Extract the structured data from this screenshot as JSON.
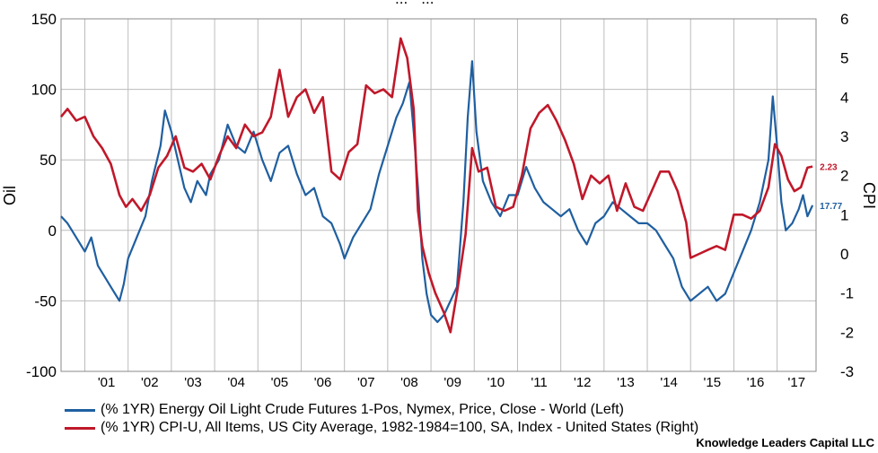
{
  "chart_data": {
    "type": "line",
    "title": "... - ...",
    "xlabel": "",
    "left_axis": {
      "label": "Oil",
      "range": [
        -100,
        150
      ],
      "ticks": [
        -100,
        -50,
        0,
        50,
        100,
        150
      ]
    },
    "right_axis": {
      "label": "CPI",
      "range": [
        -3,
        6
      ],
      "ticks": [
        -3,
        -2,
        -1,
        0,
        1,
        2,
        3,
        4,
        5,
        6
      ]
    },
    "x_ticks": [
      "'01",
      "'02",
      "'03",
      "'04",
      "'05",
      "'06",
      "'07",
      "'08",
      "'09",
      "'10",
      "'11",
      "'12",
      "'13",
      "'14",
      "'15",
      "'16",
      "'17"
    ],
    "x_range": [
      2000.45,
      2017.9
    ],
    "grid": true,
    "series": [
      {
        "name": "(% 1YR) Energy Oil Light Crude Futures 1-Pos, Nymex, Price, Close - World  (Left)",
        "axis": "left",
        "color": "#1f5fa0",
        "end_label": "17.77",
        "points": [
          [
            2000.45,
            10
          ],
          [
            2000.6,
            5
          ],
          [
            2000.8,
            -5
          ],
          [
            2001.0,
            -15
          ],
          [
            2001.15,
            -5
          ],
          [
            2001.3,
            -25
          ],
          [
            2001.5,
            -35
          ],
          [
            2001.7,
            -45
          ],
          [
            2001.8,
            -50
          ],
          [
            2001.9,
            -38
          ],
          [
            2002.0,
            -20
          ],
          [
            2002.2,
            -5
          ],
          [
            2002.4,
            10
          ],
          [
            2002.55,
            35
          ],
          [
            2002.75,
            60
          ],
          [
            2002.85,
            85
          ],
          [
            2003.0,
            70
          ],
          [
            2003.15,
            50
          ],
          [
            2003.3,
            30
          ],
          [
            2003.45,
            20
          ],
          [
            2003.6,
            35
          ],
          [
            2003.8,
            25
          ],
          [
            2003.9,
            40
          ],
          [
            2004.1,
            50
          ],
          [
            2004.3,
            75
          ],
          [
            2004.5,
            60
          ],
          [
            2004.7,
            55
          ],
          [
            2004.9,
            70
          ],
          [
            2005.1,
            50
          ],
          [
            2005.3,
            35
          ],
          [
            2005.5,
            55
          ],
          [
            2005.7,
            60
          ],
          [
            2005.9,
            40
          ],
          [
            2006.1,
            25
          ],
          [
            2006.3,
            30
          ],
          [
            2006.5,
            10
          ],
          [
            2006.7,
            5
          ],
          [
            2006.9,
            -10
          ],
          [
            2007.0,
            -20
          ],
          [
            2007.2,
            -5
          ],
          [
            2007.4,
            5
          ],
          [
            2007.6,
            15
          ],
          [
            2007.8,
            40
          ],
          [
            2008.0,
            60
          ],
          [
            2008.2,
            80
          ],
          [
            2008.35,
            90
          ],
          [
            2008.5,
            105
          ],
          [
            2008.6,
            70
          ],
          [
            2008.7,
            30
          ],
          [
            2008.8,
            -20
          ],
          [
            2008.9,
            -45
          ],
          [
            2009.0,
            -60
          ],
          [
            2009.15,
            -65
          ],
          [
            2009.3,
            -60
          ],
          [
            2009.45,
            -50
          ],
          [
            2009.6,
            -40
          ],
          [
            2009.75,
            20
          ],
          [
            2009.85,
            80
          ],
          [
            2009.95,
            120
          ],
          [
            2010.05,
            70
          ],
          [
            2010.2,
            35
          ],
          [
            2010.4,
            20
          ],
          [
            2010.6,
            10
          ],
          [
            2010.8,
            25
          ],
          [
            2011.0,
            25
          ],
          [
            2011.2,
            45
          ],
          [
            2011.4,
            30
          ],
          [
            2011.6,
            20
          ],
          [
            2011.8,
            15
          ],
          [
            2012.0,
            10
          ],
          [
            2012.2,
            15
          ],
          [
            2012.4,
            0
          ],
          [
            2012.6,
            -10
          ],
          [
            2012.8,
            5
          ],
          [
            2013.0,
            10
          ],
          [
            2013.2,
            20
          ],
          [
            2013.4,
            15
          ],
          [
            2013.6,
            10
          ],
          [
            2013.8,
            5
          ],
          [
            2014.0,
            5
          ],
          [
            2014.2,
            0
          ],
          [
            2014.4,
            -10
          ],
          [
            2014.6,
            -20
          ],
          [
            2014.8,
            -40
          ],
          [
            2015.0,
            -50
          ],
          [
            2015.2,
            -45
          ],
          [
            2015.4,
            -40
          ],
          [
            2015.6,
            -50
          ],
          [
            2015.8,
            -45
          ],
          [
            2016.0,
            -30
          ],
          [
            2016.2,
            -15
          ],
          [
            2016.4,
            0
          ],
          [
            2016.6,
            20
          ],
          [
            2016.8,
            50
          ],
          [
            2016.9,
            95
          ],
          [
            2017.0,
            60
          ],
          [
            2017.1,
            20
          ],
          [
            2017.2,
            0
          ],
          [
            2017.35,
            5
          ],
          [
            2017.5,
            15
          ],
          [
            2017.6,
            25
          ],
          [
            2017.7,
            10
          ],
          [
            2017.82,
            17.77
          ]
        ]
      },
      {
        "name": "(% 1YR) CPI-U, All Items, US City Average, 1982-1984=100, SA, Index - United States  (Right)",
        "axis": "right",
        "color": "#c0182a",
        "end_label": "2.23",
        "points": [
          [
            2000.45,
            3.5
          ],
          [
            2000.6,
            3.7
          ],
          [
            2000.8,
            3.4
          ],
          [
            2001.0,
            3.5
          ],
          [
            2001.2,
            3.0
          ],
          [
            2001.4,
            2.7
          ],
          [
            2001.6,
            2.3
          ],
          [
            2001.8,
            1.5
          ],
          [
            2001.95,
            1.2
          ],
          [
            2002.1,
            1.4
          ],
          [
            2002.3,
            1.1
          ],
          [
            2002.5,
            1.5
          ],
          [
            2002.7,
            2.2
          ],
          [
            2002.9,
            2.5
          ],
          [
            2003.1,
            3.0
          ],
          [
            2003.3,
            2.2
          ],
          [
            2003.5,
            2.1
          ],
          [
            2003.7,
            2.3
          ],
          [
            2003.9,
            1.9
          ],
          [
            2004.1,
            2.5
          ],
          [
            2004.3,
            3.0
          ],
          [
            2004.5,
            2.7
          ],
          [
            2004.7,
            3.3
          ],
          [
            2004.9,
            3.0
          ],
          [
            2005.1,
            3.1
          ],
          [
            2005.3,
            3.5
          ],
          [
            2005.5,
            4.7
          ],
          [
            2005.7,
            3.5
          ],
          [
            2005.9,
            4.0
          ],
          [
            2006.1,
            4.2
          ],
          [
            2006.3,
            3.6
          ],
          [
            2006.5,
            4.0
          ],
          [
            2006.7,
            2.1
          ],
          [
            2006.9,
            1.9
          ],
          [
            2007.1,
            2.6
          ],
          [
            2007.3,
            2.8
          ],
          [
            2007.5,
            4.3
          ],
          [
            2007.7,
            4.1
          ],
          [
            2007.9,
            4.2
          ],
          [
            2008.1,
            4.0
          ],
          [
            2008.3,
            5.5
          ],
          [
            2008.45,
            5.0
          ],
          [
            2008.6,
            3.7
          ],
          [
            2008.7,
            1.1
          ],
          [
            2008.8,
            0.2
          ],
          [
            2008.95,
            -0.5
          ],
          [
            2009.1,
            -1.0
          ],
          [
            2009.3,
            -1.5
          ],
          [
            2009.45,
            -2.0
          ],
          [
            2009.6,
            -1.0
          ],
          [
            2009.8,
            0.5
          ],
          [
            2009.95,
            2.7
          ],
          [
            2010.1,
            2.1
          ],
          [
            2010.3,
            2.2
          ],
          [
            2010.5,
            1.2
          ],
          [
            2010.7,
            1.1
          ],
          [
            2010.9,
            1.2
          ],
          [
            2011.1,
            2.0
          ],
          [
            2011.3,
            3.2
          ],
          [
            2011.5,
            3.6
          ],
          [
            2011.7,
            3.8
          ],
          [
            2011.9,
            3.4
          ],
          [
            2012.1,
            2.9
          ],
          [
            2012.3,
            2.3
          ],
          [
            2012.5,
            1.4
          ],
          [
            2012.7,
            2.0
          ],
          [
            2012.9,
            1.8
          ],
          [
            2013.1,
            2.0
          ],
          [
            2013.3,
            1.1
          ],
          [
            2013.5,
            1.8
          ],
          [
            2013.7,
            1.2
          ],
          [
            2013.9,
            1.1
          ],
          [
            2014.1,
            1.6
          ],
          [
            2014.3,
            2.1
          ],
          [
            2014.5,
            2.1
          ],
          [
            2014.7,
            1.6
          ],
          [
            2014.9,
            0.8
          ],
          [
            2015.0,
            -0.1
          ],
          [
            2015.2,
            0.0
          ],
          [
            2015.4,
            0.1
          ],
          [
            2015.6,
            0.2
          ],
          [
            2015.8,
            0.1
          ],
          [
            2016.0,
            1.0
          ],
          [
            2016.2,
            1.0
          ],
          [
            2016.4,
            0.9
          ],
          [
            2016.6,
            1.1
          ],
          [
            2016.8,
            1.7
          ],
          [
            2016.95,
            2.8
          ],
          [
            2017.1,
            2.5
          ],
          [
            2017.25,
            1.9
          ],
          [
            2017.4,
            1.6
          ],
          [
            2017.55,
            1.7
          ],
          [
            2017.7,
            2.2
          ],
          [
            2017.82,
            2.23
          ]
        ]
      }
    ]
  },
  "legend": {
    "oil": "(% 1YR) Energy Oil Light Crude Futures 1-Pos, Nymex, Price, Close - World  (Left)",
    "cpi": "(% 1YR) CPI-U, All Items, US City Average, 1982-1984=100, SA, Index - United States  (Right)"
  },
  "credit": "Knowledge Leaders Capital LLC",
  "colors": {
    "oil": "#1f5fa0",
    "cpi": "#c0182a",
    "grid": "#bcbcbc"
  }
}
